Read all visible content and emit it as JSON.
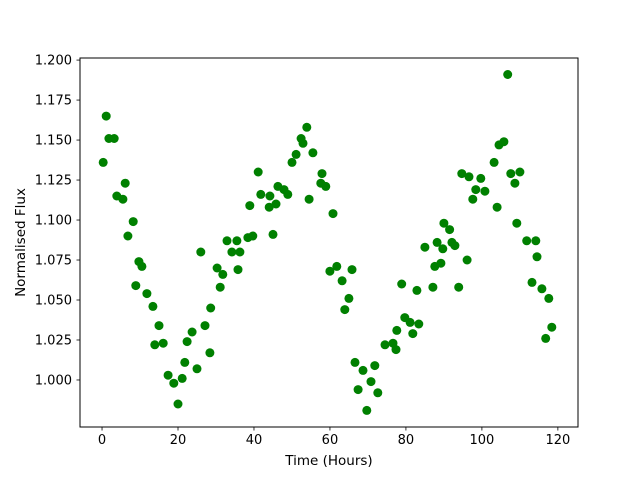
{
  "chart_data": {
    "type": "scatter",
    "title": "",
    "xlabel": "Time (Hours)",
    "ylabel": "Normalised Flux",
    "xlim": [
      -5.8,
      125.3
    ],
    "ylim": [
      0.9706,
      1.2013
    ],
    "x_ticks": [
      0,
      20,
      40,
      60,
      80,
      100,
      120
    ],
    "y_ticks": [
      1.0,
      1.025,
      1.05,
      1.075,
      1.1,
      1.125,
      1.15,
      1.175,
      1.2
    ],
    "grid": false,
    "legend": "none",
    "marker_color": "#008000",
    "background_color": "#ffffff",
    "spine_color": "#000000",
    "series": [
      {
        "name": "normalised-flux",
        "points": [
          [
            0.3,
            1.136
          ],
          [
            1.1,
            1.165
          ],
          [
            1.8,
            1.151
          ],
          [
            3.2,
            1.151
          ],
          [
            3.9,
            1.115
          ],
          [
            5.5,
            1.113
          ],
          [
            6.1,
            1.123
          ],
          [
            6.8,
            1.09
          ],
          [
            8.2,
            1.099
          ],
          [
            8.9,
            1.059
          ],
          [
            9.7,
            1.074
          ],
          [
            10.5,
            1.071
          ],
          [
            11.8,
            1.054
          ],
          [
            13.4,
            1.046
          ],
          [
            13.9,
            1.022
          ],
          [
            15.0,
            1.034
          ],
          [
            16.1,
            1.023
          ],
          [
            17.4,
            1.003
          ],
          [
            18.9,
            0.998
          ],
          [
            20.0,
            0.985
          ],
          [
            21.1,
            1.001
          ],
          [
            21.8,
            1.011
          ],
          [
            22.4,
            1.024
          ],
          [
            23.7,
            1.03
          ],
          [
            25.0,
            1.007
          ],
          [
            26.0,
            1.08
          ],
          [
            27.1,
            1.034
          ],
          [
            28.4,
            1.017
          ],
          [
            28.6,
            1.045
          ],
          [
            30.3,
            1.07
          ],
          [
            31.1,
            1.058
          ],
          [
            31.8,
            1.066
          ],
          [
            32.9,
            1.087
          ],
          [
            34.2,
            1.08
          ],
          [
            35.5,
            1.087
          ],
          [
            35.8,
            1.069
          ],
          [
            36.3,
            1.08
          ],
          [
            38.4,
            1.089
          ],
          [
            38.9,
            1.109
          ],
          [
            39.7,
            1.09
          ],
          [
            41.1,
            1.13
          ],
          [
            41.8,
            1.116
          ],
          [
            44.0,
            1.108
          ],
          [
            44.2,
            1.115
          ],
          [
            45.0,
            1.091
          ],
          [
            45.8,
            1.11
          ],
          [
            46.3,
            1.121
          ],
          [
            47.9,
            1.119
          ],
          [
            48.9,
            1.116
          ],
          [
            50.0,
            1.136
          ],
          [
            51.1,
            1.141
          ],
          [
            52.4,
            1.151
          ],
          [
            52.9,
            1.148
          ],
          [
            53.9,
            1.158
          ],
          [
            54.5,
            1.113
          ],
          [
            55.5,
            1.142
          ],
          [
            57.6,
            1.123
          ],
          [
            57.9,
            1.129
          ],
          [
            58.9,
            1.121
          ],
          [
            60.0,
            1.068
          ],
          [
            60.8,
            1.104
          ],
          [
            61.8,
            1.071
          ],
          [
            63.2,
            1.062
          ],
          [
            63.9,
            1.044
          ],
          [
            65.0,
            1.051
          ],
          [
            65.8,
            1.069
          ],
          [
            66.6,
            1.011
          ],
          [
            67.4,
            0.994
          ],
          [
            68.7,
            1.006
          ],
          [
            69.7,
            0.981
          ],
          [
            70.8,
            0.999
          ],
          [
            71.8,
            1.009
          ],
          [
            72.6,
            0.992
          ],
          [
            74.5,
            1.022
          ],
          [
            76.6,
            1.023
          ],
          [
            77.4,
            1.019
          ],
          [
            77.6,
            1.031
          ],
          [
            78.9,
            1.06
          ],
          [
            79.7,
            1.039
          ],
          [
            81.1,
            1.036
          ],
          [
            81.8,
            1.029
          ],
          [
            82.9,
            1.056
          ],
          [
            83.4,
            1.035
          ],
          [
            85.0,
            1.083
          ],
          [
            87.1,
            1.058
          ],
          [
            87.6,
            1.071
          ],
          [
            88.2,
            1.086
          ],
          [
            89.2,
            1.073
          ],
          [
            89.7,
            1.082
          ],
          [
            90.0,
            1.098
          ],
          [
            91.5,
            1.094
          ],
          [
            92.1,
            1.086
          ],
          [
            92.9,
            1.084
          ],
          [
            93.9,
            1.058
          ],
          [
            94.7,
            1.129
          ],
          [
            96.1,
            1.075
          ],
          [
            96.6,
            1.127
          ],
          [
            97.6,
            1.113
          ],
          [
            98.4,
            1.119
          ],
          [
            99.7,
            1.126
          ],
          [
            100.8,
            1.118
          ],
          [
            103.2,
            1.136
          ],
          [
            104.0,
            1.108
          ],
          [
            104.5,
            1.147
          ],
          [
            105.8,
            1.149
          ],
          [
            106.8,
            1.191
          ],
          [
            107.6,
            1.129
          ],
          [
            108.7,
            1.123
          ],
          [
            109.2,
            1.098
          ],
          [
            110.0,
            1.13
          ],
          [
            111.8,
            1.087
          ],
          [
            113.2,
            1.061
          ],
          [
            114.2,
            1.087
          ],
          [
            114.5,
            1.077
          ],
          [
            115.8,
            1.057
          ],
          [
            116.8,
            1.026
          ],
          [
            117.6,
            1.051
          ],
          [
            118.4,
            1.033
          ]
        ]
      }
    ]
  }
}
